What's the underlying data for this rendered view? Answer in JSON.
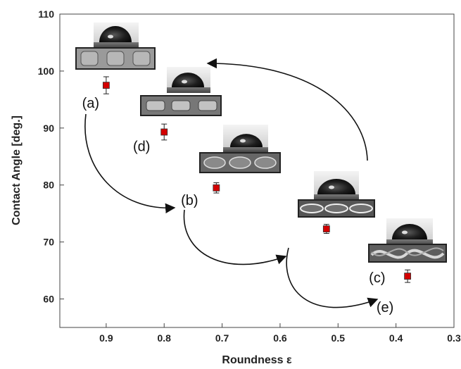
{
  "chart_data": {
    "type": "scatter",
    "title": "",
    "xlabel": "Roundness ε",
    "ylabel": "Contact Angle [deg.]",
    "xlim": [
      0.3,
      0.98
    ],
    "ylim": [
      55,
      110
    ],
    "x_reversed": true,
    "x_ticks": [
      0.9,
      0.8,
      0.7,
      0.6,
      0.5,
      0.4,
      0.3
    ],
    "x_tick_labels": [
      "0.9",
      "0.8",
      "0.7",
      "0.6",
      "0.5",
      "0.4",
      "0.3"
    ],
    "y_ticks": [
      60,
      70,
      80,
      90,
      100,
      110
    ],
    "y_tick_labels": [
      "60",
      "70",
      "80",
      "90",
      "100",
      "110"
    ],
    "grid": false,
    "marker_color": "#d40000",
    "series": [
      {
        "x": [
          0.9,
          0.8,
          0.71,
          0.52,
          0.38
        ],
        "y": [
          97.5,
          89.3,
          79.5,
          72.3,
          64.0
        ],
        "yerr": [
          1.5,
          1.4,
          0.9,
          0.8,
          1.1
        ]
      }
    ],
    "annotations": [
      {
        "label": "(a)",
        "x": 0.9,
        "y": 97.5
      },
      {
        "label": "(d)",
        "x": 0.8,
        "y": 89.3
      },
      {
        "label": "(b)",
        "x": 0.71,
        "y": 79.5
      },
      {
        "label": "(c)",
        "x": 0.52,
        "y": 72.3
      },
      {
        "label": "(e)",
        "x": 0.38,
        "y": 64.0
      }
    ]
  }
}
